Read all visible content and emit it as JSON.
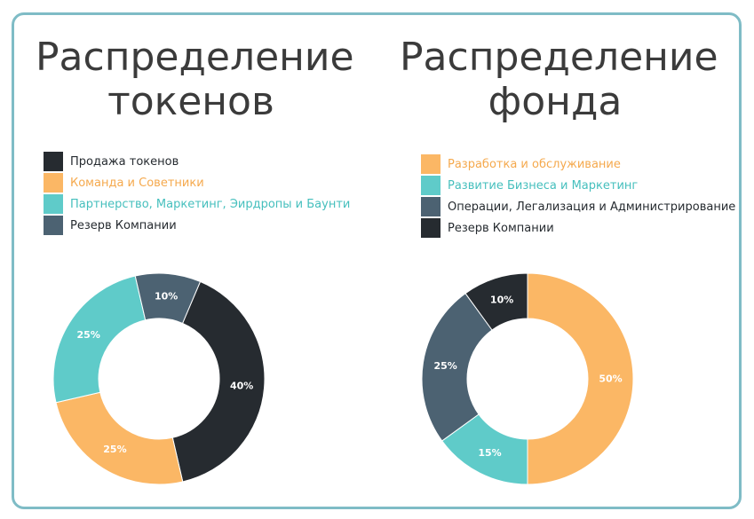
{
  "colors": {
    "dark": "#262b30",
    "orange": "#fbb765",
    "teal": "#5fcbc9",
    "slate": "#4c6272",
    "frame": "#7fbcc6"
  },
  "chart_data": [
    {
      "type": "pie",
      "title": "Распределение\nтокенов",
      "legend_position": "top-left",
      "series": [
        {
          "name": "Продажа токенов",
          "value": 40,
          "label": "40%",
          "color": "#262b30",
          "legend_text_color": "#262b30"
        },
        {
          "name": "Команда и Советники",
          "value": 25,
          "label": "25%",
          "color": "#fbb765",
          "legend_text_color": "#f5a94d"
        },
        {
          "name": "Партнерство, Маркетинг, Эирдропы и Баунти",
          "value": 25,
          "label": "25%",
          "color": "#5fcbc9",
          "legend_text_color": "#45bfbd"
        },
        {
          "name": "Резерв Компании",
          "value": 10,
          "label": "10%",
          "color": "#4c6272",
          "legend_text_color": "#262b30"
        }
      ]
    },
    {
      "type": "pie",
      "title": "Распределение\nфонда",
      "legend_position": "top-left",
      "series": [
        {
          "name": "Разработка и обслуживание",
          "value": 50,
          "label": "50%",
          "color": "#fbb765",
          "legend_text_color": "#f5a94d"
        },
        {
          "name": "Развитие Бизнеса и Маркетинг",
          "value": 15,
          "label": "15%",
          "color": "#5fcbc9",
          "legend_text_color": "#45bfbd"
        },
        {
          "name": "Операции, Легализация и Администрирование",
          "value": 25,
          "label": "25%",
          "color": "#4c6272",
          "legend_text_color": "#262b30"
        },
        {
          "name": "Резерв Компании",
          "value": 10,
          "label": "10%",
          "color": "#262b30",
          "legend_text_color": "#262b30"
        }
      ]
    }
  ]
}
